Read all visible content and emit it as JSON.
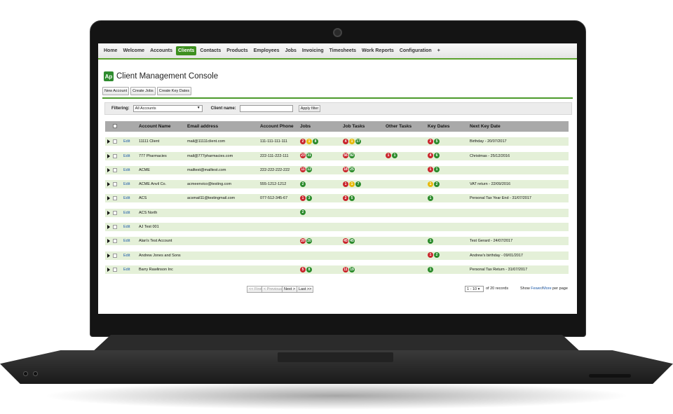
{
  "nav": {
    "tabs": [
      {
        "label": "Home",
        "active": false
      },
      {
        "label": "Welcome",
        "active": false
      },
      {
        "label": "Accounts",
        "active": false
      },
      {
        "label": "Clients",
        "active": true
      },
      {
        "label": "Contacts",
        "active": false
      },
      {
        "label": "Products",
        "active": false
      },
      {
        "label": "Employees",
        "active": false
      },
      {
        "label": "Jobs",
        "active": false
      },
      {
        "label": "Invoicing",
        "active": false
      },
      {
        "label": "Timesheets",
        "active": false
      },
      {
        "label": "Work Reports",
        "active": false
      },
      {
        "label": "Configuration",
        "active": false
      },
      {
        "label": "+",
        "active": false
      }
    ]
  },
  "page": {
    "logo_text": "Ap",
    "title": "Client Management Console"
  },
  "actions": {
    "new_account": "New Account",
    "create_jobs": "Create Jobs",
    "create_key_dates": "Create Key Dates"
  },
  "filter": {
    "filtering_label": "Filtering:",
    "filtering_value": "All Accounts",
    "client_name_label": "Client name:",
    "client_name_value": "",
    "apply_label": "Apply filter"
  },
  "table": {
    "columns": [
      "Account Name",
      "Email address",
      "Account Phone",
      "Jobs",
      "Job Tasks",
      "Other Tasks",
      "Key Dates",
      "Next Key Date"
    ],
    "edit_label": "Edit",
    "rows": [
      {
        "name": "11111 Client",
        "email": "mail@11111client.com",
        "phone": "111-111-111-111",
        "jobs": [
          [
            "2",
            "red"
          ],
          [
            "1",
            "yellow"
          ],
          [
            "8",
            "green"
          ]
        ],
        "job_tasks": [
          [
            "4",
            "red"
          ],
          [
            "1",
            "yellow"
          ],
          [
            "17",
            "green"
          ]
        ],
        "other_tasks": [],
        "key_dates": [
          [
            "2",
            "red"
          ],
          [
            "5",
            "green"
          ]
        ],
        "next_key_date": "Birthday - 20/07/2017"
      },
      {
        "name": "777 Pharmacies",
        "email": "mail@777pharmacies.com",
        "phone": "222-111-222-111",
        "jobs": [
          [
            "23",
            "red"
          ],
          [
            "31",
            "green"
          ]
        ],
        "job_tasks": [
          [
            "56",
            "red"
          ],
          [
            "82",
            "green"
          ]
        ],
        "other_tasks": [
          [
            "1",
            "red"
          ],
          [
            "1",
            "green"
          ]
        ],
        "key_dates": [
          [
            "4",
            "red"
          ],
          [
            "6",
            "green"
          ]
        ],
        "next_key_date": "Christmas - 25/12/2016"
      },
      {
        "name": "ACME",
        "email": "mailtest@mailtest.com",
        "phone": "222-222-222-222",
        "jobs": [
          [
            "11",
            "red"
          ],
          [
            "13",
            "green"
          ]
        ],
        "job_tasks": [
          [
            "18",
            "red"
          ],
          [
            "25",
            "green"
          ]
        ],
        "other_tasks": [],
        "key_dates": [
          [
            "1",
            "red"
          ],
          [
            "1",
            "green"
          ]
        ],
        "next_key_date": ""
      },
      {
        "name": "ACME Anvil Co.",
        "email": "acmeenvico@testing.com",
        "phone": "555-1212-1212",
        "jobs": [
          [
            "2",
            "green"
          ]
        ],
        "job_tasks": [
          [
            "1",
            "red"
          ],
          [
            "1",
            "yellow"
          ],
          [
            "7",
            "green"
          ]
        ],
        "other_tasks": [],
        "key_dates": [
          [
            "1",
            "yellow"
          ],
          [
            "2",
            "green"
          ]
        ],
        "next_key_date": "VAT return - 22/09/2016"
      },
      {
        "name": "ACS",
        "email": "acsmail11@testingmail.com",
        "phone": "077-512-345-67",
        "jobs": [
          [
            "1",
            "red"
          ],
          [
            "3",
            "green"
          ]
        ],
        "job_tasks": [
          [
            "2",
            "red"
          ],
          [
            "5",
            "green"
          ]
        ],
        "other_tasks": [],
        "key_dates": [
          [
            "1",
            "green"
          ]
        ],
        "next_key_date": "Personal Tax Year End - 31/07/2017"
      },
      {
        "name": "ACS North",
        "email": "",
        "phone": "",
        "jobs": [
          [
            "2",
            "green"
          ]
        ],
        "job_tasks": [],
        "other_tasks": [],
        "key_dates": [],
        "next_key_date": ""
      },
      {
        "name": "AJ Test 001",
        "email": "",
        "phone": "",
        "jobs": [],
        "job_tasks": [],
        "other_tasks": [],
        "key_dates": [],
        "next_key_date": ""
      },
      {
        "name": "Alan's Test Account",
        "email": "",
        "phone": "",
        "jobs": [
          [
            "20",
            "red"
          ],
          [
            "20",
            "green"
          ]
        ],
        "job_tasks": [
          [
            "45",
            "red"
          ],
          [
            "45",
            "green"
          ]
        ],
        "other_tasks": [],
        "key_dates": [
          [
            "1",
            "green"
          ]
        ],
        "next_key_date": "Test Gerard - 24/07/2017"
      },
      {
        "name": "Andrew Jones and Sons",
        "email": "",
        "phone": "",
        "jobs": [],
        "job_tasks": [],
        "other_tasks": [],
        "key_dates": [
          [
            "1",
            "red"
          ],
          [
            "2",
            "green"
          ]
        ],
        "next_key_date": "Andrew's birthday - 09/01/2017"
      },
      {
        "name": "Barry Rawlinson Inc",
        "email": "",
        "phone": "",
        "jobs": [
          [
            "5",
            "red"
          ],
          [
            "8",
            "green"
          ]
        ],
        "job_tasks": [
          [
            "11",
            "red"
          ],
          [
            "19",
            "green"
          ]
        ],
        "other_tasks": [],
        "key_dates": [
          [
            "1",
            "green"
          ]
        ],
        "next_key_date": "Personal Tax Return - 31/07/2017"
      }
    ]
  },
  "pager": {
    "first": "<< First",
    "previous": "< Previous",
    "next": "Next >",
    "last": "Last >>",
    "range": "1 - 10",
    "records_text": "of 20 records",
    "show_text": "Show",
    "fewer": "Fewer",
    "slash": "/",
    "more": "More",
    "per_page": "per page"
  },
  "colors": {
    "accent": "#3d8f1f",
    "row_bg": "#e4f0d8",
    "red": "#c9252c",
    "yellow": "#e7b90a",
    "green": "#2a8a2a"
  }
}
